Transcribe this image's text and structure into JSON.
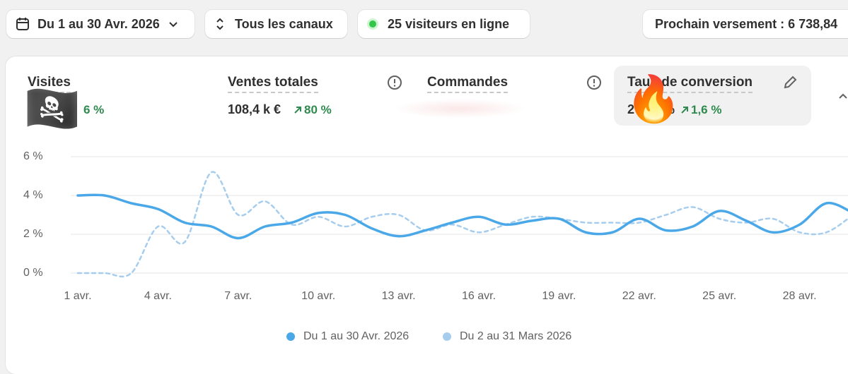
{
  "toolbar": {
    "date_range": "Du 1 au 30 Avr. 2026",
    "channels": "Tous les canaux",
    "visitors_online": "25 visiteurs en ligne",
    "next_payout": "Prochain versement : 6 738,84"
  },
  "metrics": [
    {
      "label": "Visites",
      "change": "6 %"
    },
    {
      "label": "Ventes totales",
      "value": "108,4 k €",
      "change": "80 %"
    },
    {
      "label": "Commandes"
    },
    {
      "label": "Taux de conversion",
      "value_start": "2",
      "value_end": "%",
      "change": "1,6 %"
    }
  ],
  "stickers": [
    "🏴‍☠️",
    "🔥"
  ],
  "chart_data": {
    "type": "line",
    "categories": [
      "1 avr.",
      null,
      null,
      "4 avr.",
      null,
      null,
      "7 avr.",
      null,
      null,
      "10 avr.",
      null,
      null,
      "13 avr.",
      null,
      null,
      "16 avr.",
      null,
      null,
      "19 avr.",
      null,
      null,
      "22 avr.",
      null,
      null,
      "25 avr.",
      null,
      null,
      "28 avr.",
      null,
      null
    ],
    "series": [
      {
        "name": "Du 1 au 30 Avr. 2026",
        "color": "#4aa8e8",
        "dashed": false,
        "values": [
          4.0,
          4.0,
          3.6,
          3.3,
          2.6,
          2.4,
          1.8,
          2.4,
          2.6,
          3.1,
          3.0,
          2.3,
          1.9,
          2.2,
          2.6,
          2.9,
          2.5,
          2.7,
          2.8,
          2.1,
          2.1,
          2.8,
          2.2,
          2.4,
          3.2,
          2.7,
          2.1,
          2.5,
          3.6,
          3.1
        ]
      },
      {
        "name": "Du 2 au 31 Mars 2026",
        "color": "#a6cdee",
        "dashed": true,
        "values": [
          0,
          0,
          0,
          2.4,
          1.6,
          5.2,
          3.0,
          3.7,
          2.5,
          2.9,
          2.4,
          2.9,
          3.0,
          2.2,
          2.5,
          2.1,
          2.5,
          2.9,
          2.8,
          2.6,
          2.6,
          2.6,
          3.0,
          3.4,
          2.8,
          2.6,
          2.8,
          2.1,
          2.1,
          3.0
        ]
      }
    ],
    "ylim": [
      0,
      6
    ],
    "yticks": [
      {
        "value": 0,
        "label": "0 %"
      },
      {
        "value": 2,
        "label": "2 %"
      },
      {
        "value": 4,
        "label": "4 %"
      },
      {
        "value": 6,
        "label": "6 %"
      }
    ],
    "grid": true
  }
}
